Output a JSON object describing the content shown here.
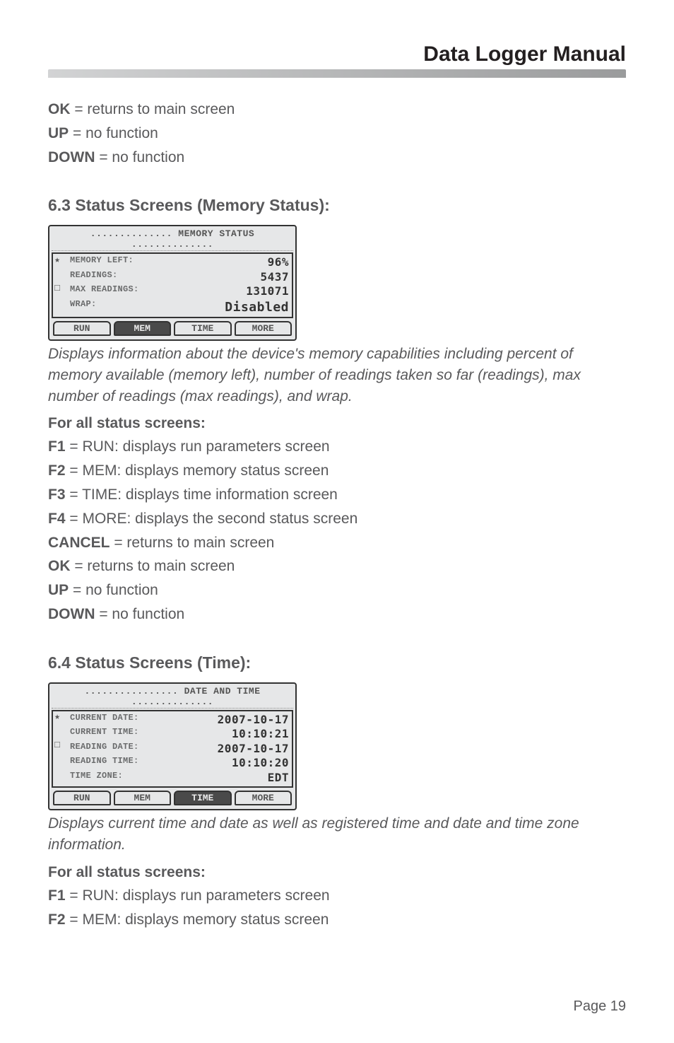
{
  "doc_title": "Data Logger Manual",
  "page_number": "Page 19",
  "intro_lines": [
    {
      "key": "OK",
      "desc": " = returns to main screen"
    },
    {
      "key": "UP",
      "desc": " = no function"
    },
    {
      "key": "DOWN",
      "desc": " = no function"
    }
  ],
  "section_63": {
    "heading": "6.3 Status Screens (Memory Status):",
    "lcd": {
      "title": "MEMORY STATUS",
      "side_icons": [
        "★",
        "□"
      ],
      "rows": [
        {
          "label": "MEMORY LEFT:",
          "value": "96%"
        },
        {
          "label": "READINGS:",
          "value": "5437"
        },
        {
          "label": "MAX READINGS:",
          "value": "131071"
        },
        {
          "label": "WRAP:",
          "value": "Disabled"
        }
      ],
      "tabs": [
        "RUN",
        "MEM",
        "TIME",
        "MORE"
      ],
      "active_tab": 1
    },
    "caption": "Displays information about the device's memory capabilities including percent of memory available (memory left), number of readings taken so far (readings), max number of readings (max readings), and wrap.",
    "subhead": "For all status screens:",
    "lines": [
      {
        "key": "F1",
        "desc": " = RUN: displays run parameters screen"
      },
      {
        "key": "F2",
        "desc": " = MEM: displays memory status screen"
      },
      {
        "key": "F3",
        "desc": " = TIME: displays time information screen"
      },
      {
        "key": "F4",
        "desc": " = MORE: displays the second status screen"
      },
      {
        "key": "CANCEL",
        "desc": " = returns to main screen"
      },
      {
        "key": "OK",
        "desc": " = returns to main screen"
      },
      {
        "key": "UP",
        "desc": " = no function"
      },
      {
        "key": "DOWN",
        "desc": " = no function"
      }
    ]
  },
  "section_64": {
    "heading": "6.4 Status Screens (Time):",
    "lcd": {
      "title": "DATE AND TIME",
      "side_icons": [
        "★",
        "□"
      ],
      "rows": [
        {
          "label": "CURRENT DATE:",
          "value": "2007-10-17"
        },
        {
          "label": "CURRENT TIME:",
          "value": "10:10:21"
        },
        {
          "label": "READING DATE:",
          "value": "2007-10-17"
        },
        {
          "label": "READING TIME:",
          "value": "10:10:20"
        },
        {
          "label": "TIME ZONE:",
          "value": "EDT"
        }
      ],
      "tabs": [
        "RUN",
        "MEM",
        "TIME",
        "MORE"
      ],
      "active_tab": 2
    },
    "caption": "Displays current time and date as well as registered time and date and time zone information.",
    "subhead": "For all status screens:",
    "lines": [
      {
        "key": "F1",
        "desc": " = RUN: displays run parameters screen"
      },
      {
        "key": "F2",
        "desc": " = MEM: displays memory status screen"
      }
    ]
  }
}
